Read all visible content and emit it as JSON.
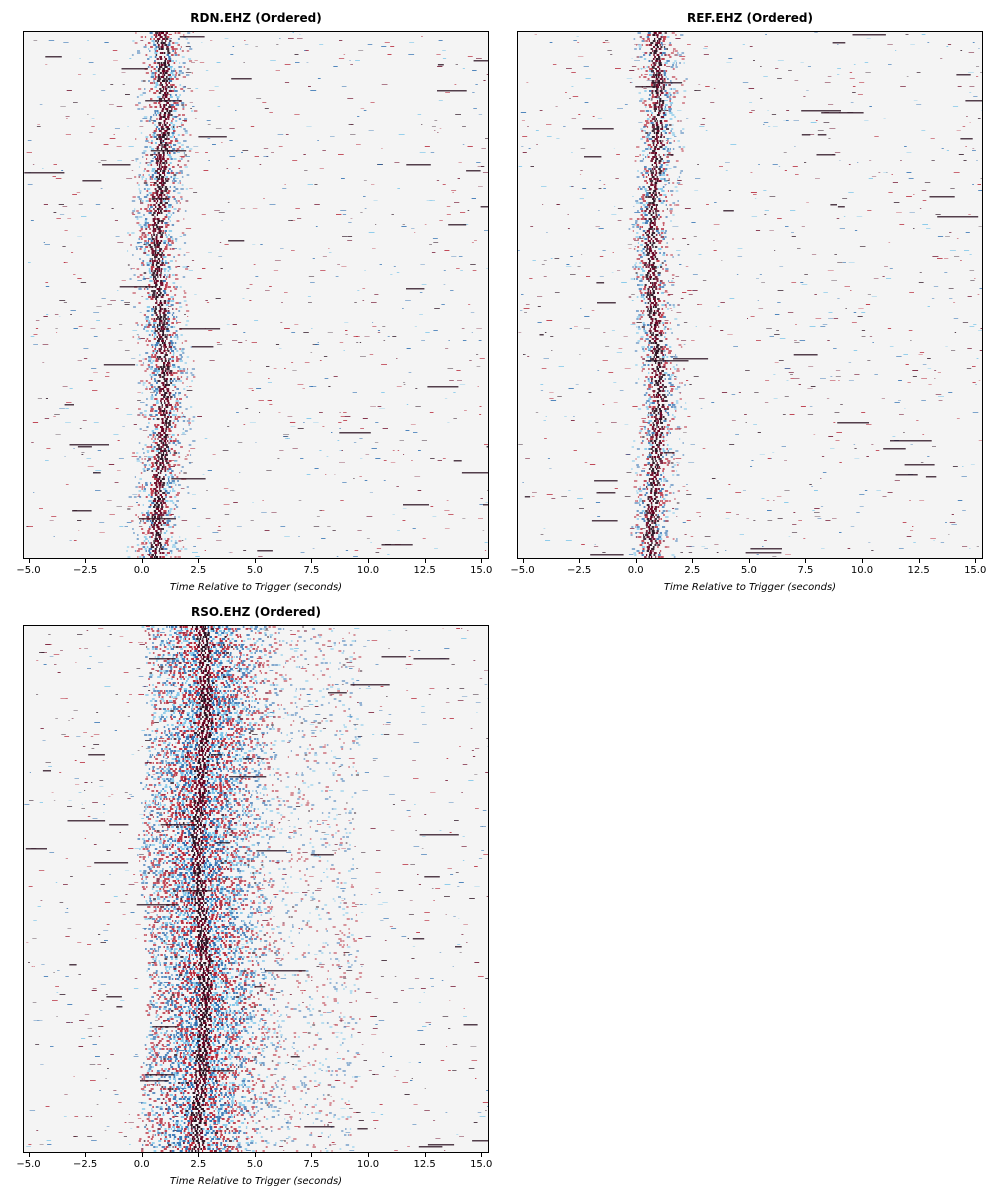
{
  "chart_data": [
    {
      "type": "heatmap",
      "title": "RDN.EHZ (Ordered)",
      "xlabel": "Time Relative to Trigger (seconds)",
      "ylabel": "",
      "xlim": [
        -5.2,
        15.3
      ],
      "xticks": [
        -5.0,
        -2.5,
        0.0,
        2.5,
        5.0,
        7.5,
        10.0,
        12.5,
        15.0
      ],
      "xtick_labels": [
        "−5.0",
        "−2.5",
        "0.0",
        "2.5",
        "5.0",
        "7.5",
        "10.0",
        "12.5",
        "15.0"
      ],
      "colormap": "seismic (blue-white-red)",
      "signal_window": [
        -0.5,
        2.1
      ],
      "peak_time": 0.8,
      "grid": false
    },
    {
      "type": "heatmap",
      "title": "REF.EHZ (Ordered)",
      "xlabel": "Time Relative to Trigger (seconds)",
      "ylabel": "",
      "xlim": [
        -5.2,
        15.3
      ],
      "xticks": [
        -5.0,
        -2.5,
        0.0,
        2.5,
        5.0,
        7.5,
        10.0,
        12.5,
        15.0
      ],
      "xtick_labels": [
        "−5.0",
        "−2.5",
        "0.0",
        "2.5",
        "5.0",
        "7.5",
        "10.0",
        "12.5",
        "15.0"
      ],
      "colormap": "seismic (blue-white-red)",
      "signal_window": [
        -0.2,
        2.0
      ],
      "peak_time": 0.8,
      "grid": false
    },
    {
      "type": "heatmap",
      "title": "RSO.EHZ (Ordered)",
      "xlabel": "Time Relative to Trigger (seconds)",
      "ylabel": "",
      "xlim": [
        -5.2,
        15.3
      ],
      "xticks": [
        -5.0,
        -2.5,
        0.0,
        2.5,
        5.0,
        7.5,
        10.0,
        12.5,
        15.0
      ],
      "xtick_labels": [
        "−5.0",
        "−2.5",
        "0.0",
        "2.5",
        "5.0",
        "7.5",
        "10.0",
        "12.5",
        "15.0"
      ],
      "colormap": "seismic (blue-white-red)",
      "signal_window": [
        0.0,
        9.5
      ],
      "peak_time": 2.6,
      "grid": false
    }
  ],
  "colors": {
    "red": "#b2182b",
    "dark_red": "#67001f",
    "blue": "#2166ac",
    "light_blue": "#6fc0e8",
    "background": "#f4f4f4",
    "dark": "#2a1020"
  }
}
